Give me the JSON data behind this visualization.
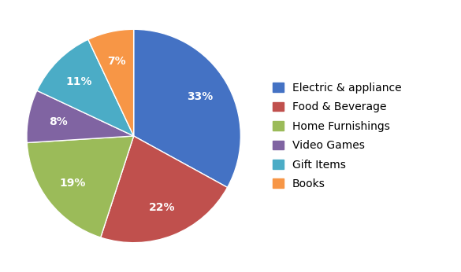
{
  "labels": [
    "Electric & appliance",
    "Food & Beverage",
    "Home Furnishings",
    "Video Games",
    "Gift Items",
    "Books"
  ],
  "values": [
    33,
    22,
    19,
    8,
    11,
    7
  ],
  "colors": [
    "#4472C4",
    "#C0504D",
    "#9BBB59",
    "#8064A2",
    "#4BACC6",
    "#F79646"
  ],
  "title_fontsize": 14,
  "label_fontsize": 10,
  "legend_fontsize": 10,
  "background_color": "#FFFFFF",
  "startangle": 90,
  "pctdistance": 0.72
}
